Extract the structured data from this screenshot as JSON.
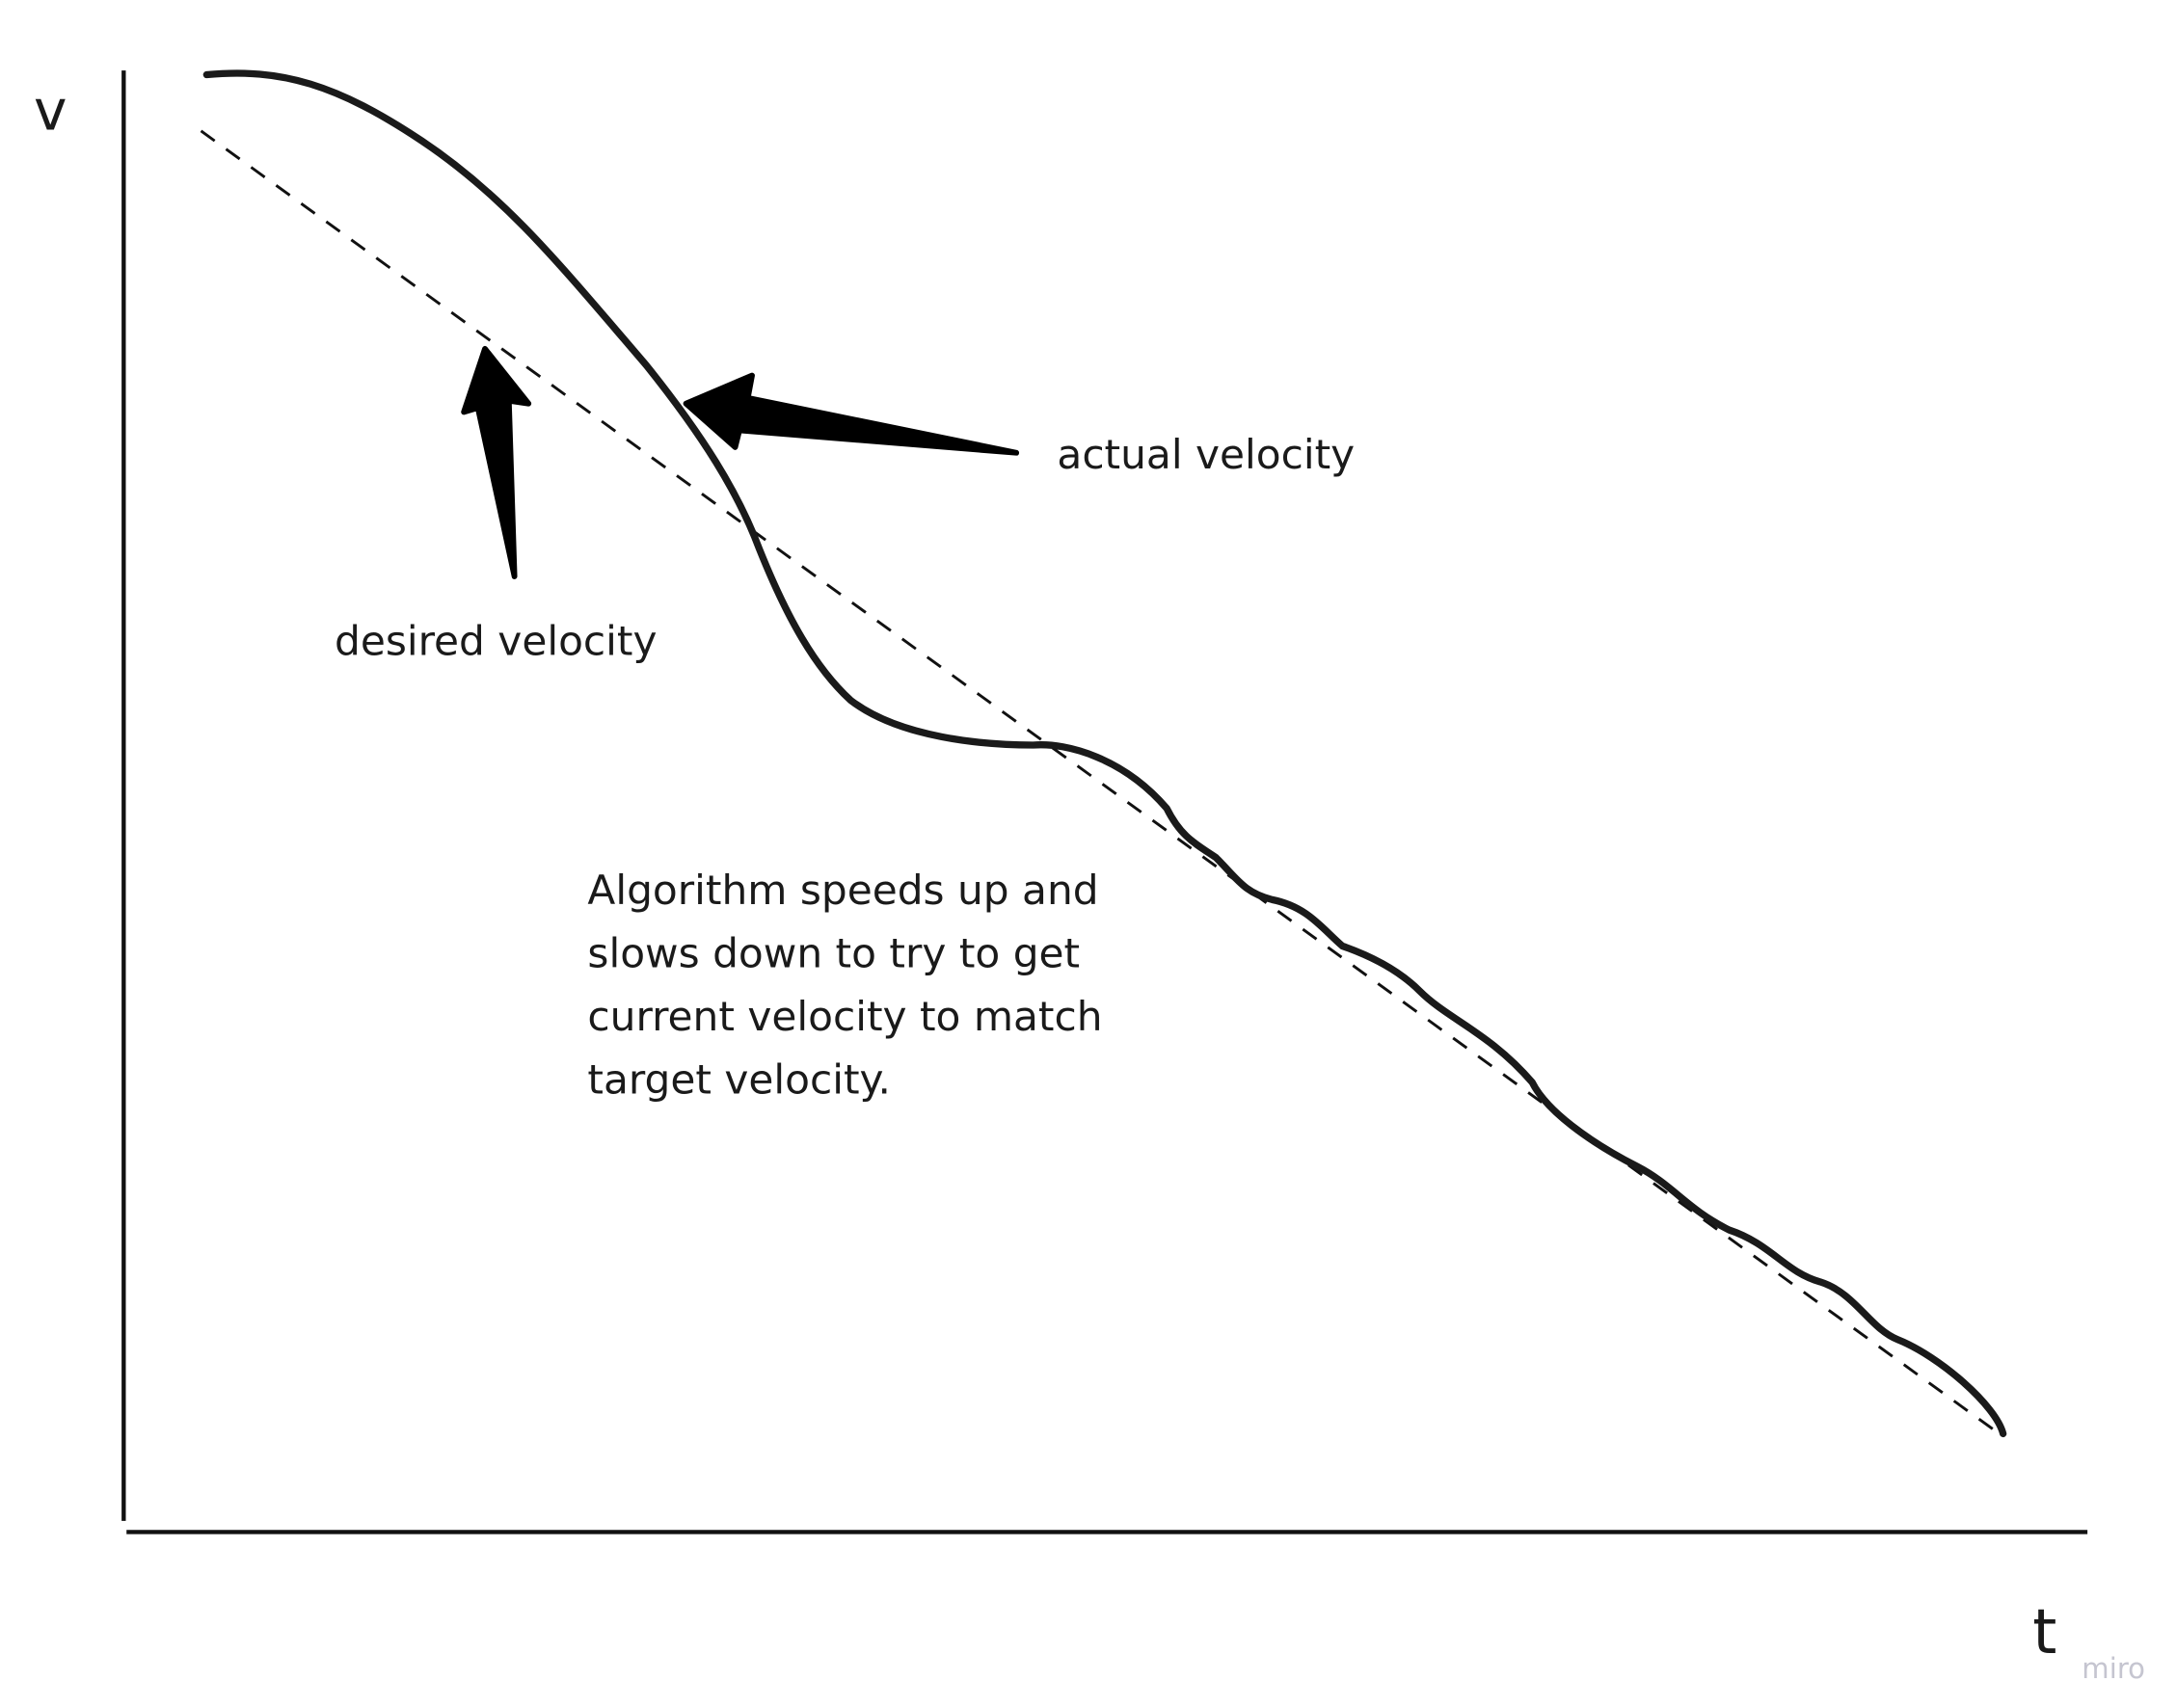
{
  "axes": {
    "y_label": "v",
    "x_label": "t"
  },
  "series": [
    {
      "name": "actual velocity",
      "style": "solid"
    },
    {
      "name": "desired velocity",
      "style": "dashed"
    }
  ],
  "annotations": {
    "actual": "actual velocity",
    "desired": "desired velocity",
    "note_lines": [
      "Algorithm speeds up and",
      "slows down to try to get",
      "current velocity to match",
      "target velocity."
    ]
  },
  "watermark": "miro",
  "colors": {
    "ink": "#1a1a1a",
    "watermark": "#c5c5d0"
  }
}
